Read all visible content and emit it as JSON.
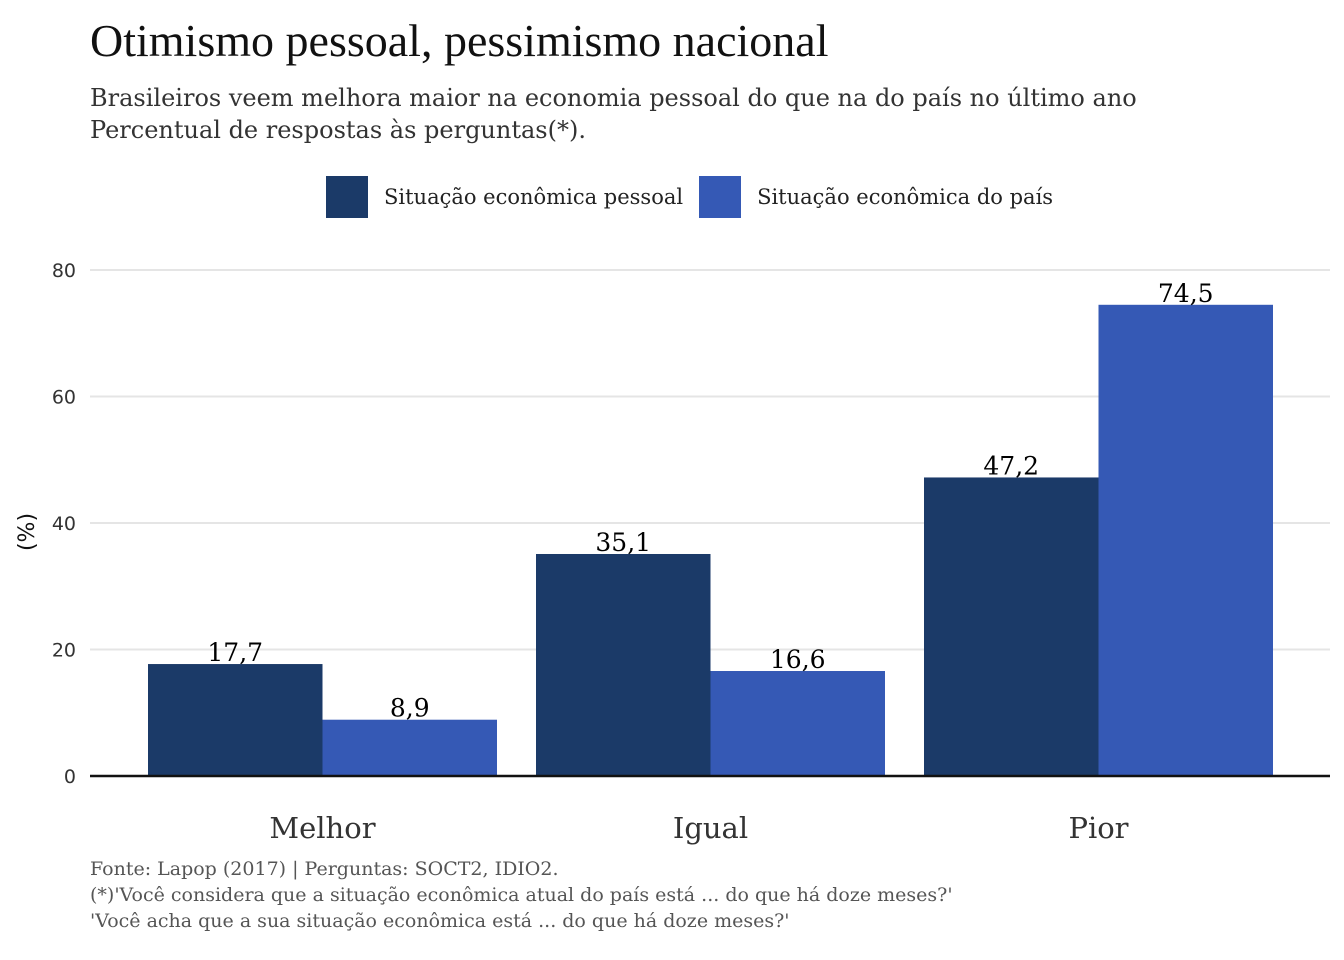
{
  "colors": {
    "pessoal": "#1b3a68",
    "pais": "#3559b5",
    "grid": "#e5e5e5",
    "axis": "#111111"
  },
  "chart_data": {
    "type": "bar",
    "title": "Otimismo pessoal, pessimismo nacional",
    "subtitle_lines": [
      "Brasileiros veem melhora maior na economia pessoal do que na do país no último ano",
      "Percentual de respostas às perguntas(*)."
    ],
    "categories": [
      "Melhor",
      "Igual",
      "Pior"
    ],
    "series": [
      {
        "name": "Situação econômica pessoal",
        "values": [
          17.7,
          35.1,
          47.2
        ],
        "labels": [
          "17,7",
          "35,1",
          "47,2"
        ]
      },
      {
        "name": "Situação econômica do país",
        "values": [
          8.9,
          16.6,
          74.5
        ],
        "labels": [
          "8,9",
          "16,6",
          "74,5"
        ]
      }
    ],
    "ylabel": "(%)",
    "xlabel": "",
    "ylim": [
      0,
      80
    ],
    "yticks": [
      0,
      20,
      40,
      60,
      80
    ],
    "legend_position": "top",
    "grid": true,
    "caption_lines": [
      "Fonte: Lapop (2017) | Perguntas: SOCT2, IDIO2.",
      "(*)'Você considera que a situação econômica atual do país está ... do que há doze meses?'",
      "'Você acha que a sua situação econômica está ... do que há doze meses?'"
    ]
  }
}
